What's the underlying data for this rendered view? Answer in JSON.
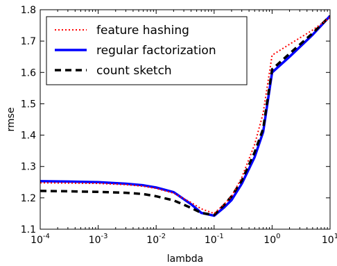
{
  "chart_data": {
    "type": "line",
    "xlabel": "lambda",
    "ylabel": "rmse",
    "xscale": "log",
    "xlim": [
      0.0001,
      10
    ],
    "ylim": [
      1.1,
      1.8
    ],
    "x_ticks": [
      {
        "value": 0.0001,
        "base": "10",
        "exp": "-4"
      },
      {
        "value": 0.001,
        "base": "10",
        "exp": "-3"
      },
      {
        "value": 0.01,
        "base": "10",
        "exp": "-2"
      },
      {
        "value": 0.1,
        "base": "10",
        "exp": "-1"
      },
      {
        "value": 1,
        "base": "10",
        "exp": "0"
      },
      {
        "value": 10,
        "base": "10",
        "exp": "1"
      }
    ],
    "y_ticks": [
      {
        "value": 1.1,
        "label": "1.1"
      },
      {
        "value": 1.2,
        "label": "1.2"
      },
      {
        "value": 1.3,
        "label": "1.3"
      },
      {
        "value": 1.4,
        "label": "1.4"
      },
      {
        "value": 1.5,
        "label": "1.5"
      },
      {
        "value": 1.6,
        "label": "1.6"
      },
      {
        "value": 1.7,
        "label": "1.7"
      },
      {
        "value": 1.8,
        "label": "1.8"
      }
    ],
    "legend_position": "top-left",
    "grid": false,
    "series": [
      {
        "name": "feature hashing",
        "color": "#ff0000",
        "style": "dotted",
        "x": [
          0.0001,
          0.0003,
          0.001,
          0.003,
          0.006,
          0.01,
          0.02,
          0.04,
          0.06,
          0.1,
          0.15,
          0.2,
          0.3,
          0.5,
          0.7,
          1,
          2,
          5,
          10
        ],
        "y": [
          1.248,
          1.247,
          1.246,
          1.242,
          1.237,
          1.23,
          1.215,
          1.185,
          1.165,
          1.15,
          1.18,
          1.205,
          1.265,
          1.37,
          1.47,
          1.655,
          1.69,
          1.735,
          1.775
        ]
      },
      {
        "name": "regular factorization",
        "color": "#0000ff",
        "style": "solid",
        "x": [
          0.0001,
          0.0003,
          0.001,
          0.003,
          0.006,
          0.01,
          0.02,
          0.04,
          0.06,
          0.1,
          0.15,
          0.2,
          0.3,
          0.5,
          0.7,
          1,
          2,
          5,
          10
        ],
        "y": [
          1.253,
          1.252,
          1.25,
          1.245,
          1.24,
          1.233,
          1.218,
          1.18,
          1.152,
          1.143,
          1.17,
          1.193,
          1.245,
          1.33,
          1.41,
          1.6,
          1.65,
          1.72,
          1.78
        ]
      },
      {
        "name": "count sketch",
        "color": "#000000",
        "style": "dashed",
        "x": [
          0.0001,
          0.0003,
          0.001,
          0.003,
          0.006,
          0.01,
          0.02,
          0.04,
          0.06,
          0.1,
          0.15,
          0.2,
          0.3,
          0.5,
          0.7,
          1,
          2,
          5,
          10
        ],
        "y": [
          1.222,
          1.221,
          1.219,
          1.216,
          1.212,
          1.205,
          1.192,
          1.168,
          1.152,
          1.145,
          1.178,
          1.205,
          1.255,
          1.345,
          1.42,
          1.61,
          1.66,
          1.725,
          1.78
        ]
      }
    ]
  }
}
